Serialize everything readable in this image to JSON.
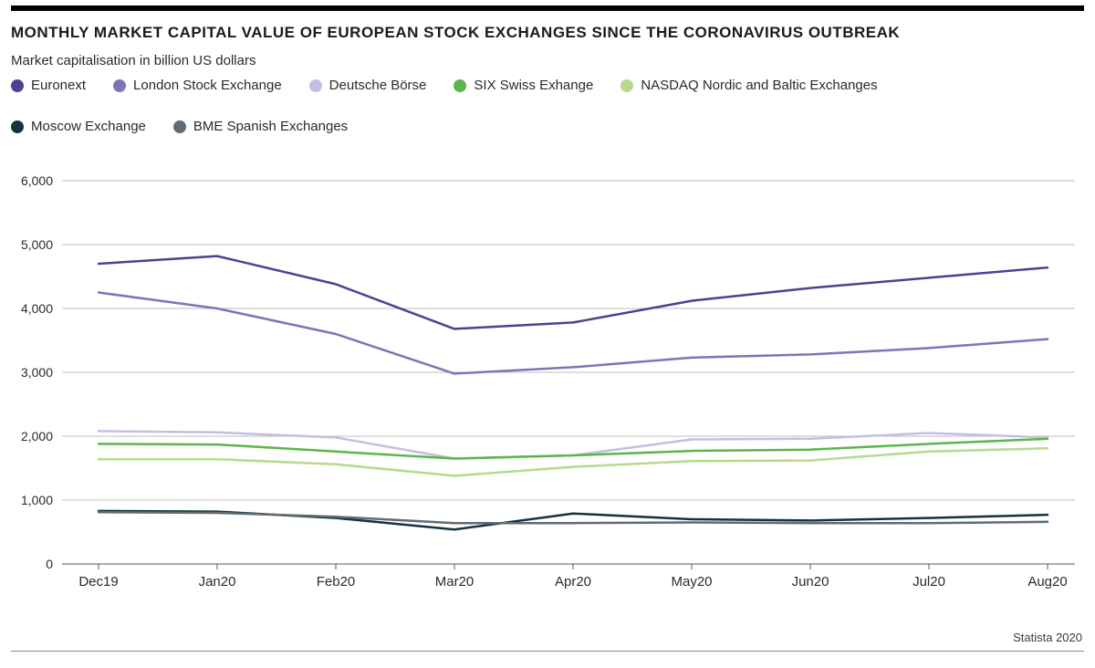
{
  "title": "MONTHLY MARKET CAPITAL VALUE OF EUROPEAN STOCK EXCHANGES SINCE THE CORONAVIRUS OUTBREAK",
  "subtitle": "Market capitalisation in billion US dollars",
  "source": "Statista 2020",
  "chart": {
    "type": "line",
    "background_color": "#ffffff",
    "grid_color": "#bdbdbd",
    "axis_color": "#5a5a5a",
    "label_fontsize": 14,
    "x_label_fontsize": 15,
    "line_width": 2.5,
    "ylim": [
      0,
      6000
    ],
    "ytick_step": 1000,
    "yticks": [
      "0",
      "1,000",
      "2,000",
      "3,000",
      "4,000",
      "5,000",
      "6,000"
    ],
    "categories": [
      "Dec19",
      "Jan20",
      "Feb20",
      "Mar20",
      "Apr20",
      "May20",
      "Jun20",
      "Jul20",
      "Aug20"
    ],
    "series": [
      {
        "name": "Euronext",
        "color": "#4a4390",
        "values": [
          4700,
          4820,
          4380,
          3680,
          3780,
          4120,
          4320,
          4480,
          4640
        ]
      },
      {
        "name": "London Stock Exchange",
        "color": "#7c76b6",
        "values": [
          4250,
          4000,
          3600,
          2980,
          3080,
          3230,
          3280,
          3380,
          3520
        ]
      },
      {
        "name": "Deutsche Börse",
        "color": "#c4bfe0",
        "values": [
          2080,
          2060,
          1980,
          1650,
          1700,
          1950,
          1960,
          2050,
          1980
        ]
      },
      {
        "name": "SIX Swiss Exhange",
        "color": "#5bb54a",
        "values": [
          1880,
          1870,
          1760,
          1650,
          1700,
          1770,
          1790,
          1880,
          1960
        ]
      },
      {
        "name": "NASDAQ Nordic and Baltic Exchanges",
        "color": "#b7d98f",
        "values": [
          1640,
          1640,
          1560,
          1380,
          1520,
          1610,
          1620,
          1760,
          1810
        ]
      },
      {
        "name": "Moscow Exchange",
        "color": "#13333f",
        "values": [
          830,
          820,
          720,
          540,
          790,
          700,
          680,
          720,
          770
        ]
      },
      {
        "name": "BME Spanish Exchanges",
        "color": "#606b73",
        "values": [
          810,
          800,
          740,
          640,
          640,
          650,
          640,
          640,
          660
        ]
      }
    ]
  }
}
